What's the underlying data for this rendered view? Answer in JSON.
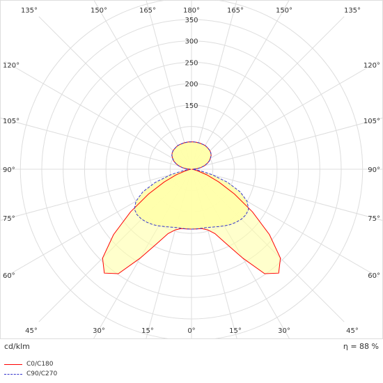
{
  "chart_data": {
    "type": "polar",
    "unit_label": "cd/klm",
    "efficiency_label": "η = 88 %",
    "radial_ticks": [
      50,
      100,
      150,
      200,
      250,
      300,
      350
    ],
    "radial_tick_labels": [
      "150",
      "200",
      "250",
      "300",
      "350"
    ],
    "radial_labeled_values": [
      150,
      200,
      250,
      300,
      350
    ],
    "rmax": 350,
    "angle_labels_top": [
      "135°",
      "150°",
      "165°",
      "180°",
      "165°",
      "150°",
      "135°"
    ],
    "angle_labels_bottom": [
      "45°",
      "30°",
      "15°",
      "0°",
      "15°",
      "30°",
      "45°"
    ],
    "angle_labels_sides": [
      "120°",
      "105°",
      "90°",
      "75°",
      "60°"
    ],
    "colors": {
      "c0": "#ff0000",
      "c90": "#3333cc",
      "fill": "#ffffaa",
      "grid": "#dddddd"
    },
    "series": [
      {
        "name": "C0/C180",
        "angles": [
          0,
          5,
          10,
          15,
          20,
          25,
          30,
          35,
          40,
          45,
          50,
          55,
          60,
          65,
          70,
          75,
          80,
          85,
          90,
          95,
          100,
          105,
          110,
          115,
          120,
          125,
          130,
          135,
          140,
          145,
          150,
          155,
          160,
          165,
          170,
          175,
          180
        ],
        "values": [
          140,
          140,
          141,
          147,
          160,
          192,
          240,
          298,
          317,
          294,
          238,
          174,
          116,
          70,
          38,
          15,
          5,
          1,
          3,
          12,
          22,
          31,
          39,
          46,
          51,
          56,
          59,
          61,
          62,
          63,
          64,
          64,
          64,
          64,
          64,
          64,
          64
        ]
      },
      {
        "name": "C90/C270",
        "angles": [
          0,
          5,
          10,
          15,
          20,
          25,
          30,
          35,
          40,
          45,
          50,
          55,
          60,
          65,
          70,
          75,
          80,
          85,
          90,
          95,
          100,
          105,
          110,
          115,
          120,
          125,
          130,
          135,
          140,
          145,
          150,
          155,
          160,
          165,
          170,
          175,
          180
        ],
        "values": [
          140,
          140,
          140,
          141,
          144,
          148,
          153,
          158,
          162,
          165,
          166,
          163,
          150,
          126,
          90,
          50,
          20,
          5,
          3,
          12,
          22,
          31,
          39,
          46,
          51,
          56,
          59,
          61,
          62,
          63,
          64,
          64,
          64,
          64,
          64,
          64,
          64
        ]
      }
    ]
  }
}
